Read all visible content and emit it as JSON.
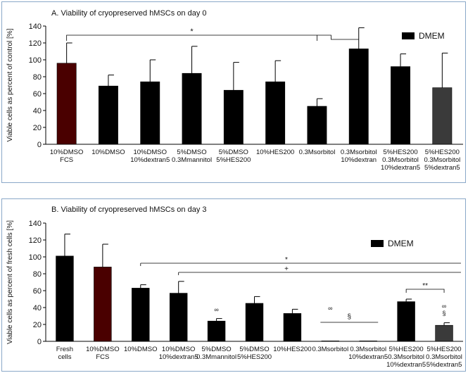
{
  "chart_data": [
    {
      "type": "bar",
      "title": "A. Viability  of cryopreserved  hMSCs  on day 0",
      "ylabel": "Viable cells as percent of control [%]",
      "ylim": [
        0,
        140
      ],
      "yticks": [
        0,
        20,
        40,
        60,
        80,
        100,
        120,
        140
      ],
      "legend": {
        "label": "DMEM",
        "placement": "top-right"
      },
      "grid": false,
      "categories": [
        [
          "10%DMSO",
          "FCS"
        ],
        [
          "10%DMSO"
        ],
        [
          "10%DMSO",
          "10%dextran5"
        ],
        [
          "5%DMSO",
          "0.3Mmannitol"
        ],
        [
          "5%DMSO",
          "5%HES200"
        ],
        [
          "10%HES200"
        ],
        [
          "0.3Msorbitol"
        ],
        [
          "0.3Msorbitol",
          "10%dextran"
        ],
        [
          "5%HES200",
          "0.3Msorbitol",
          "10%dextran5"
        ],
        [
          "5%HES200",
          "0.3Msorbitol",
          "5%dextran5"
        ]
      ],
      "values": [
        96,
        69,
        74,
        84,
        64,
        74,
        45,
        113,
        92,
        67
      ],
      "errors": [
        24,
        13,
        26,
        32,
        33,
        25,
        9,
        25,
        15,
        41
      ],
      "colors": [
        "#4a0000",
        "#000000",
        "#000000",
        "#000000",
        "#000000",
        "#000000",
        "#000000",
        "#000000",
        "#000000",
        "#3a3a3a"
      ],
      "annotations": [
        {
          "text": "*",
          "from": 0,
          "to": 6
        }
      ]
    },
    {
      "type": "bar",
      "title": "B. Viability  of cryopreserved  hMSCs on day 3",
      "ylabel": "Viable cells as percent of fresh cells [%]",
      "ylim": [
        0,
        140
      ],
      "yticks": [
        0,
        20,
        40,
        60,
        80,
        100,
        120,
        140
      ],
      "legend": {
        "label": "DMEM",
        "placement": "top-right"
      },
      "grid": false,
      "categories": [
        [
          "Fresh",
          "cells"
        ],
        [
          "10%DMSO",
          "FCS"
        ],
        [
          "10%DMSO"
        ],
        [
          "10%DMSO",
          "10%dextran5"
        ],
        [
          "5%DMSO",
          "0.3Mmannitol"
        ],
        [
          "5%DMSO",
          "5%HES200"
        ],
        [
          "10%HES200"
        ],
        [
          "0.3Msorbitol"
        ],
        [
          "0.3Msorbitol",
          "10%dextran5"
        ],
        [
          "5%HES200",
          "0.3Msorbitol",
          "10%dextran5"
        ],
        [
          "5%HES200",
          "0.3Msorbitol",
          "5%dextran5"
        ]
      ],
      "values": [
        101,
        88,
        63,
        57,
        24,
        45,
        33,
        0.5,
        0.5,
        47,
        19
      ],
      "errors": [
        26,
        27,
        4,
        14,
        3,
        8,
        5,
        0,
        0,
        3,
        3
      ],
      "colors": [
        "#000000",
        "#4a0000",
        "#000000",
        "#000000",
        "#000000",
        "#000000",
        "#000000",
        "#000000",
        "#000000",
        "#000000",
        "#3a3a3a"
      ],
      "annotations": [
        {
          "text": "*",
          "from": 2,
          "to": 10
        },
        {
          "text": "+",
          "from": 3,
          "to": 10
        },
        {
          "text": "**",
          "from": 9,
          "to": 10
        },
        {
          "text": "§",
          "from": 7,
          "to": 8
        }
      ],
      "symbols": [
        {
          "text": "∞",
          "bar": 4
        },
        {
          "text": "∞",
          "bar": 7
        },
        {
          "text": "∞",
          "bar": 10
        },
        {
          "text": "§",
          "bar": 10
        }
      ]
    }
  ]
}
